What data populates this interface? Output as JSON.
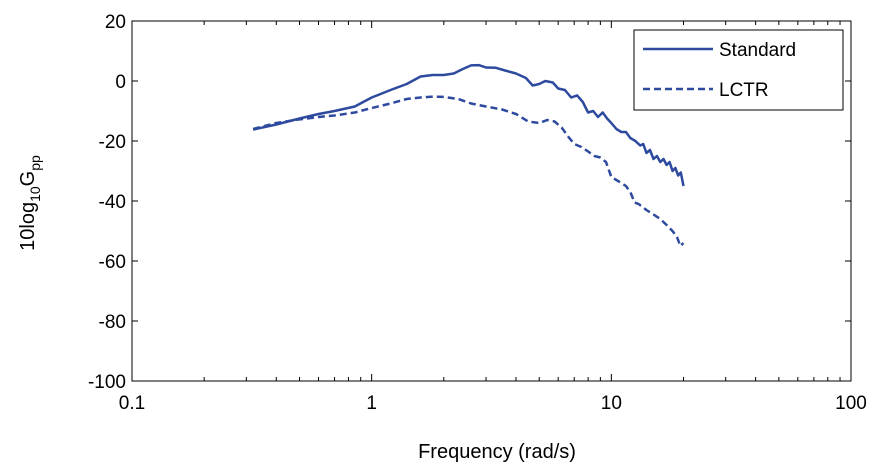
{
  "chart_data": {
    "type": "line",
    "xscale": "log",
    "xlim": [
      0.1,
      100
    ],
    "ylim": [
      -100,
      20
    ],
    "xlabel": "Frequency (rad/s)",
    "ylabel": {
      "prefix": "10log",
      "sub1": "10",
      "mid": "G",
      "sub2": "pp"
    },
    "xticks": [
      0.1,
      1,
      10,
      100
    ],
    "xtick_labels": [
      "0.1",
      "1",
      "10",
      "100"
    ],
    "yticks": [
      20,
      0,
      -20,
      -40,
      -60,
      -80,
      -100
    ],
    "ytick_labels": [
      "20",
      "0",
      "-20",
      "-40",
      "-60",
      "-80",
      "-100"
    ],
    "grid": false,
    "legend_position": "top-right",
    "series": [
      {
        "name": "Standard",
        "color": "#2e4a9e",
        "dash": "solid",
        "points": [
          [
            0.32,
            -16.2
          ],
          [
            0.4,
            -14.5
          ],
          [
            0.5,
            -12.5
          ],
          [
            0.6,
            -11.0
          ],
          [
            0.7,
            -10.0
          ],
          [
            0.85,
            -8.5
          ],
          [
            1.0,
            -5.5
          ],
          [
            1.2,
            -3.0
          ],
          [
            1.4,
            -1.0
          ],
          [
            1.6,
            1.5
          ],
          [
            1.8,
            2.0
          ],
          [
            2.0,
            2.0
          ],
          [
            2.2,
            2.5
          ],
          [
            2.4,
            4.0
          ],
          [
            2.6,
            5.2
          ],
          [
            2.8,
            5.3
          ],
          [
            3.0,
            4.5
          ],
          [
            3.3,
            4.4
          ],
          [
            3.6,
            3.5
          ],
          [
            4.0,
            2.5
          ],
          [
            4.4,
            1.0
          ],
          [
            4.7,
            -1.5
          ],
          [
            5.0,
            -1.0
          ],
          [
            5.3,
            0.0
          ],
          [
            5.7,
            -0.5
          ],
          [
            6.0,
            -2.5
          ],
          [
            6.4,
            -3.0
          ],
          [
            6.8,
            -5.5
          ],
          [
            7.2,
            -4.8
          ],
          [
            7.6,
            -7.0
          ],
          [
            8.0,
            -10.5
          ],
          [
            8.4,
            -10.0
          ],
          [
            8.8,
            -12.0
          ],
          [
            9.2,
            -10.5
          ],
          [
            9.6,
            -12.5
          ],
          [
            10.0,
            -14.0
          ],
          [
            10.5,
            -16.0
          ],
          [
            11.0,
            -17.0
          ],
          [
            11.5,
            -17.0
          ],
          [
            12.0,
            -19.0
          ],
          [
            12.6,
            -20.0
          ],
          [
            13.2,
            -21.5
          ],
          [
            13.6,
            -21.0
          ],
          [
            14.0,
            -24.0
          ],
          [
            14.5,
            -23.0
          ],
          [
            15.0,
            -26.0
          ],
          [
            15.5,
            -25.0
          ],
          [
            16.0,
            -27.0
          ],
          [
            16.5,
            -26.0
          ],
          [
            17.0,
            -28.0
          ],
          [
            17.5,
            -27.0
          ],
          [
            18.0,
            -30.0
          ],
          [
            18.5,
            -29.0
          ],
          [
            19.0,
            -31.5
          ],
          [
            19.5,
            -30.5
          ],
          [
            20.0,
            -35.0
          ]
        ]
      },
      {
        "name": "LCTR",
        "color": "#2e4a9e",
        "dash": "dashed",
        "points": [
          [
            0.32,
            -16.0
          ],
          [
            0.4,
            -14.0
          ],
          [
            0.5,
            -12.8
          ],
          [
            0.6,
            -12.0
          ],
          [
            0.7,
            -11.5
          ],
          [
            0.85,
            -10.5
          ],
          [
            1.0,
            -9.0
          ],
          [
            1.2,
            -7.5
          ],
          [
            1.4,
            -6.0
          ],
          [
            1.6,
            -5.5
          ],
          [
            1.8,
            -5.2
          ],
          [
            2.0,
            -5.3
          ],
          [
            2.3,
            -6.0
          ],
          [
            2.6,
            -7.5
          ],
          [
            3.0,
            -8.5
          ],
          [
            3.5,
            -9.5
          ],
          [
            4.0,
            -11.0
          ],
          [
            4.5,
            -13.5
          ],
          [
            5.0,
            -14.0
          ],
          [
            5.4,
            -13.0
          ],
          [
            5.8,
            -13.5
          ],
          [
            6.2,
            -15.5
          ],
          [
            6.6,
            -18.5
          ],
          [
            7.0,
            -21.0
          ],
          [
            7.5,
            -22.0
          ],
          [
            8.0,
            -23.5
          ],
          [
            8.5,
            -25.0
          ],
          [
            9.0,
            -25.5
          ],
          [
            9.5,
            -27.0
          ],
          [
            10.0,
            -32.0
          ],
          [
            10.5,
            -33.0
          ],
          [
            11.0,
            -34.0
          ],
          [
            11.5,
            -35.0
          ],
          [
            12.0,
            -37.0
          ],
          [
            12.5,
            -40.5
          ],
          [
            13.0,
            -41.0
          ],
          [
            13.5,
            -42.0
          ],
          [
            14.0,
            -43.0
          ],
          [
            15.0,
            -44.5
          ],
          [
            16.0,
            -46.0
          ],
          [
            17.0,
            -48.0
          ],
          [
            18.0,
            -50.0
          ],
          [
            18.8,
            -52.0
          ],
          [
            19.4,
            -55.0
          ],
          [
            20.0,
            -54.0
          ]
        ]
      }
    ]
  }
}
